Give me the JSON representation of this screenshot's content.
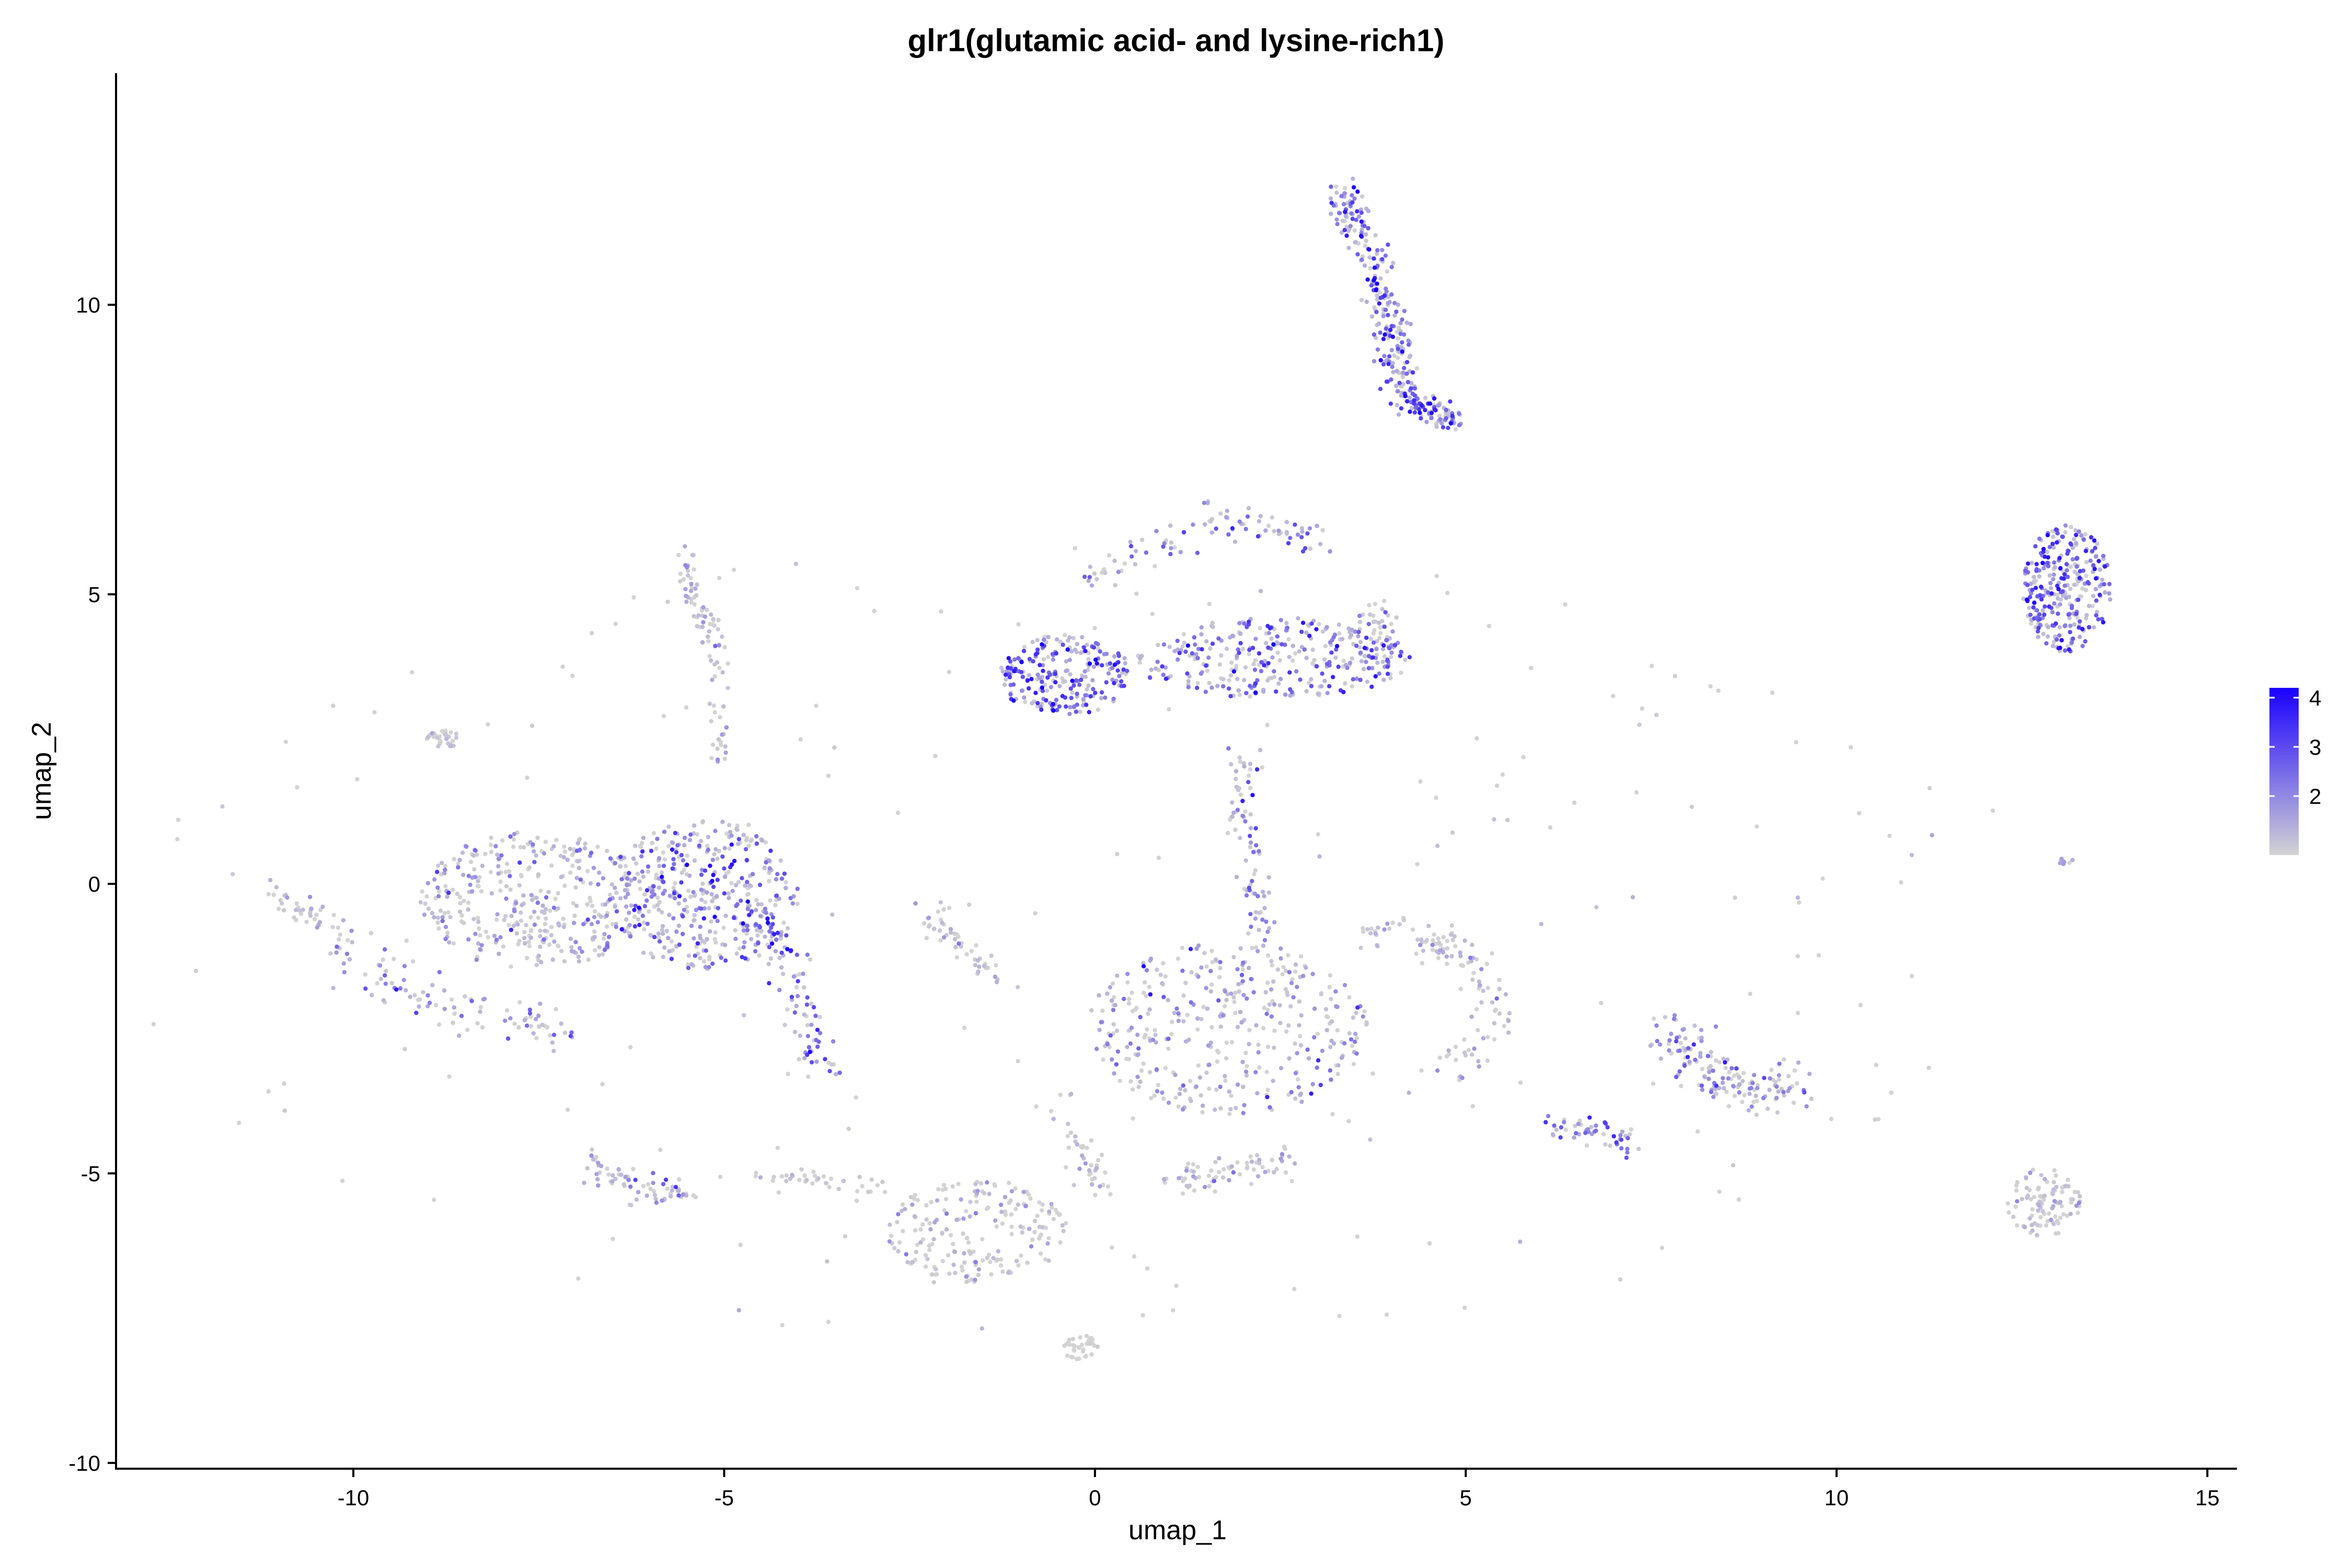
{
  "chart_data": {
    "type": "scatter",
    "title": "glr1(glutamic acid- and lysine-rich1)",
    "xlabel": "umap_1",
    "ylabel": "umap_2",
    "xlim": [
      -13.2,
      15.4
    ],
    "ylim": [
      -10.1,
      14.0
    ],
    "xticks": [
      -10,
      -5,
      0,
      5,
      10,
      15
    ],
    "yticks": [
      -10,
      -5,
      0,
      5,
      10
    ],
    "grid": false,
    "legend": {
      "placement": "right",
      "ticks": [
        2,
        3,
        4
      ],
      "range": [
        0.8,
        4.2
      ],
      "low_color": "#d3d3d3",
      "high_color": "#1a00ff"
    },
    "colors": {
      "low": "#d3d3d3",
      "high": "#1a00ff"
    },
    "clusters": [
      {
        "shape": "path",
        "path": [
          [
            3.3,
            12.0
          ],
          [
            3.5,
            11.4
          ],
          [
            3.8,
            10.6
          ],
          [
            4.0,
            9.7
          ],
          [
            4.1,
            8.9
          ],
          [
            4.2,
            8.3
          ],
          [
            4.6,
            8.2
          ],
          [
            4.8,
            8.0
          ]
        ],
        "spread": 0.12,
        "count": 340,
        "expr": [
          2.6,
          0.9
        ]
      },
      {
        "shape": "ellipse",
        "center": [
          -0.4,
          3.6
        ],
        "r": [
          0.9,
          0.7
        ],
        "count": 240,
        "expr": [
          2.7,
          0.9
        ]
      },
      {
        "shape": "ellipse",
        "center": [
          2.4,
          3.9
        ],
        "r": [
          1.9,
          0.7
        ],
        "count": 300,
        "expr": [
          2.2,
          1.0
        ]
      },
      {
        "shape": "path",
        "path": [
          [
            -0.2,
            5.2
          ],
          [
            0.8,
            5.8
          ],
          [
            1.6,
            6.3
          ],
          [
            2.4,
            6.2
          ],
          [
            3.0,
            5.9
          ]
        ],
        "spread": 0.15,
        "count": 90,
        "expr": [
          2.0,
          0.9
        ]
      },
      {
        "shape": "ellipse",
        "center": [
          3.8,
          4.3
        ],
        "r": [
          0.3,
          0.7
        ],
        "count": 60,
        "expr": [
          2.0,
          0.9
        ]
      },
      {
        "shape": "ellipse",
        "center": [
          13.1,
          5.1
        ],
        "r": [
          0.6,
          1.1
        ],
        "count": 300,
        "expr": [
          2.5,
          0.9
        ]
      },
      {
        "shape": "ellipse",
        "center": [
          13.1,
          0.4
        ],
        "r": [
          0.1,
          0.1
        ],
        "count": 8,
        "expr": [
          1.5,
          0.5
        ]
      },
      {
        "shape": "ellipse",
        "center": [
          -5.3,
          -0.2
        ],
        "r": [
          1.3,
          1.3
        ],
        "count": 420,
        "expr": [
          2.0,
          1.1
        ]
      },
      {
        "shape": "path",
        "path": [
          [
            -4.5,
            -0.5
          ],
          [
            -4.1,
            -1.5
          ],
          [
            -3.9,
            -2.5
          ],
          [
            -3.6,
            -3.3
          ]
        ],
        "spread": 0.15,
        "count": 90,
        "expr": [
          2.4,
          0.9
        ]
      },
      {
        "shape": "ellipse",
        "center": [
          -7.6,
          -0.3
        ],
        "r": [
          1.5,
          1.2
        ],
        "count": 360,
        "expr": [
          1.2,
          0.8
        ]
      },
      {
        "shape": "path",
        "path": [
          [
            -10.2,
            -1.0
          ],
          [
            -9.3,
            -2.0
          ],
          [
            -8.2,
            -2.2
          ],
          [
            -7.2,
            -2.6
          ]
        ],
        "spread": 0.2,
        "count": 100,
        "expr": [
          1.6,
          0.9
        ]
      },
      {
        "shape": "path",
        "path": [
          [
            -11.2,
            0.0
          ],
          [
            -10.7,
            -0.5
          ],
          [
            -10.2,
            -0.7
          ]
        ],
        "spread": 0.1,
        "count": 35,
        "expr": [
          1.0,
          0.5
        ]
      },
      {
        "shape": "path",
        "path": [
          [
            -5.6,
            5.8
          ],
          [
            -5.4,
            5.0
          ],
          [
            -5.1,
            4.2
          ],
          [
            -5.0,
            3.0
          ],
          [
            -5.1,
            2.0
          ]
        ],
        "spread": 0.08,
        "count": 90,
        "expr": [
          1.1,
          0.6
        ]
      },
      {
        "shape": "ellipse",
        "center": [
          -8.8,
          2.5
        ],
        "r": [
          0.25,
          0.15
        ],
        "count": 30,
        "expr": [
          0.8,
          0.3
        ]
      },
      {
        "shape": "ellipse",
        "center": [
          1.8,
          -2.5
        ],
        "r": [
          1.9,
          1.5
        ],
        "count": 380,
        "expr": [
          1.4,
          0.9
        ]
      },
      {
        "shape": "path",
        "path": [
          [
            2.0,
            2.3
          ],
          [
            2.0,
            1.2
          ],
          [
            2.2,
            0.0
          ],
          [
            2.2,
            -1.0
          ]
        ],
        "spread": 0.12,
        "count": 80,
        "expr": [
          1.6,
          0.9
        ]
      },
      {
        "shape": "path",
        "path": [
          [
            3.6,
            -0.7
          ],
          [
            4.6,
            -1.0
          ],
          [
            5.2,
            -1.5
          ],
          [
            5.4,
            -2.4
          ],
          [
            4.8,
            -3.2
          ]
        ],
        "spread": 0.15,
        "count": 120,
        "expr": [
          1.0,
          0.7
        ]
      },
      {
        "shape": "path",
        "path": [
          [
            -2.2,
            -0.5
          ],
          [
            -1.8,
            -1.1
          ],
          [
            -1.4,
            -1.7
          ]
        ],
        "spread": 0.12,
        "count": 50,
        "expr": [
          1.0,
          0.6
        ]
      },
      {
        "shape": "path",
        "path": [
          [
            1.0,
            -5.1
          ],
          [
            1.8,
            -5.0
          ],
          [
            2.6,
            -4.8
          ]
        ],
        "spread": 0.15,
        "count": 70,
        "expr": [
          1.1,
          0.7
        ]
      },
      {
        "shape": "path",
        "path": [
          [
            -6.8,
            -4.8
          ],
          [
            -6.2,
            -5.3
          ],
          [
            -5.5,
            -5.3
          ]
        ],
        "spread": 0.12,
        "count": 70,
        "expr": [
          1.2,
          0.8
        ]
      },
      {
        "shape": "ellipse",
        "center": [
          -1.6,
          -6.0
        ],
        "r": [
          1.2,
          0.9
        ],
        "count": 200,
        "expr": [
          0.9,
          0.6
        ]
      },
      {
        "shape": "path",
        "path": [
          [
            -4.5,
            -5.1
          ],
          [
            -3.6,
            -5.1
          ],
          [
            -2.8,
            -5.3
          ]
        ],
        "spread": 0.1,
        "count": 40,
        "expr": [
          0.8,
          0.4
        ]
      },
      {
        "shape": "path",
        "path": [
          [
            -0.6,
            -3.6
          ],
          [
            -0.2,
            -4.5
          ],
          [
            0.0,
            -5.2
          ]
        ],
        "spread": 0.12,
        "count": 40,
        "expr": [
          0.9,
          0.5
        ]
      },
      {
        "shape": "ellipse",
        "center": [
          -0.2,
          -8.0
        ],
        "r": [
          0.25,
          0.25
        ],
        "count": 35,
        "expr": [
          0.6,
          0.2
        ]
      },
      {
        "shape": "path",
        "path": [
          [
            7.6,
            -2.4
          ],
          [
            8.2,
            -3.2
          ],
          [
            8.8,
            -3.6
          ],
          [
            9.5,
            -3.5
          ]
        ],
        "spread": 0.2,
        "count": 160,
        "expr": [
          1.6,
          0.9
        ]
      },
      {
        "shape": "path",
        "path": [
          [
            6.2,
            -4.1
          ],
          [
            6.8,
            -4.3
          ],
          [
            7.3,
            -4.5
          ]
        ],
        "spread": 0.12,
        "count": 50,
        "expr": [
          2.0,
          0.8
        ]
      },
      {
        "shape": "ellipse",
        "center": [
          12.8,
          -5.5
        ],
        "r": [
          0.5,
          0.6
        ],
        "count": 100,
        "expr": [
          0.9,
          0.5
        ]
      },
      {
        "shape": "ellipse",
        "center": [
          0.0,
          -1.0
        ],
        "r": [
          13.0,
          7.0
        ],
        "count": 220,
        "expr": [
          0.6,
          0.4
        ]
      }
    ]
  }
}
